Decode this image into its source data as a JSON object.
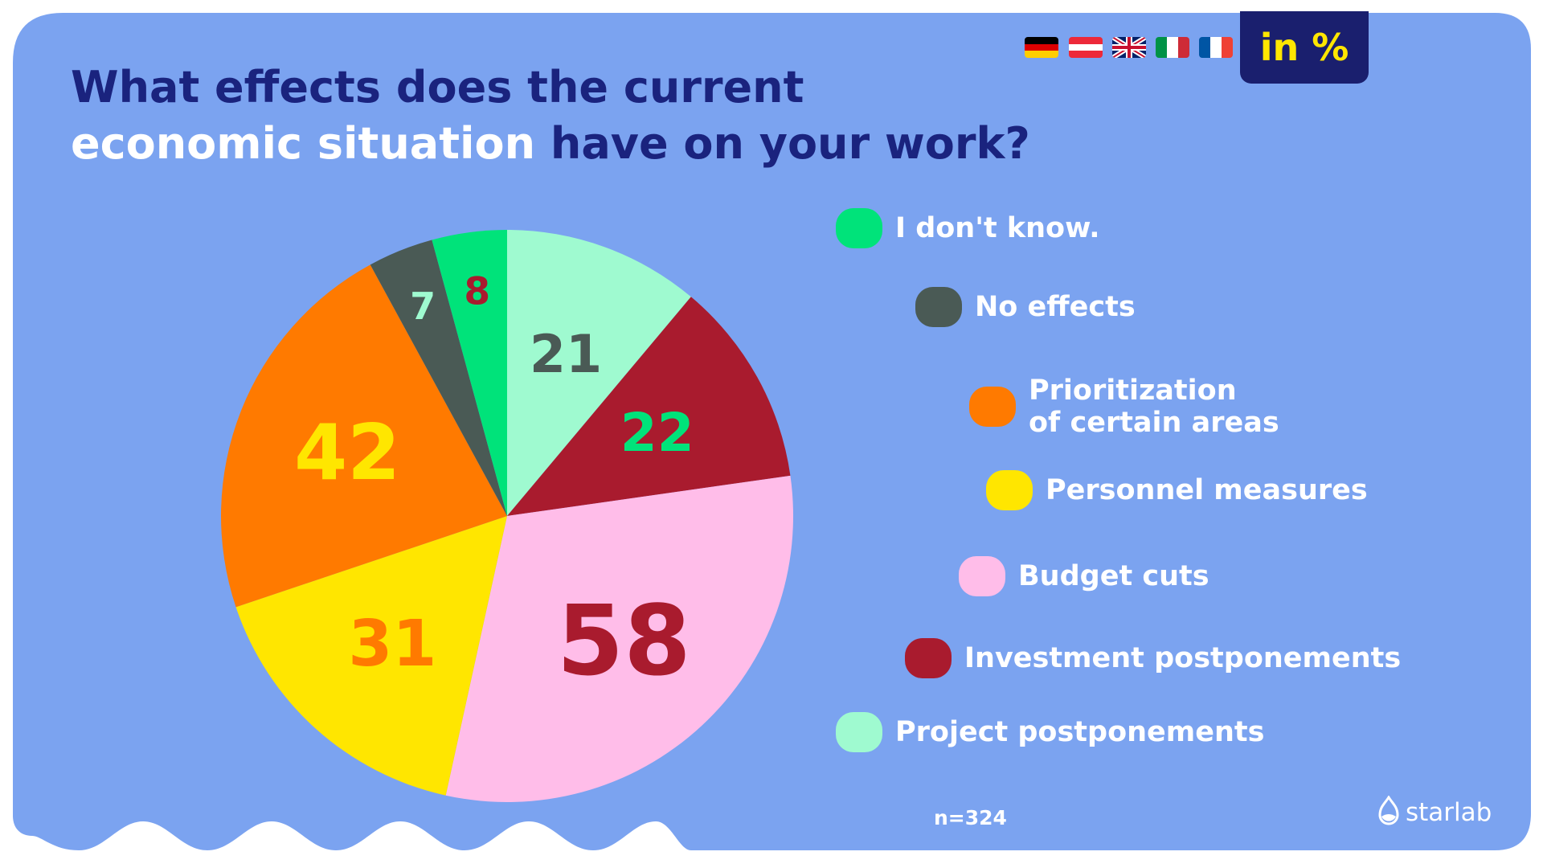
{
  "header": {
    "title_part1": "What effects does the current",
    "title_part2": "economic situation",
    "title_part3": "have on your work?",
    "unit_badge": "in %",
    "flags": [
      "german-flag-icon",
      "austrian-flag-icon",
      "uk-flag-icon",
      "italian-flag-icon",
      "french-flag-icon"
    ]
  },
  "chart_data": {
    "type": "pie",
    "title": "What effects does the current economic situation have on your work?",
    "unit": "in %",
    "slices": [
      {
        "label": "Project postponements",
        "value": 21,
        "color": "#9ffad0",
        "label_color": "#4a5a55"
      },
      {
        "label": "Investment postponements",
        "value": 22,
        "color": "#a91b2e",
        "label_color": "#00e37a"
      },
      {
        "label": "Budget cuts",
        "value": 58,
        "color": "#ffbde9",
        "label_color": "#a91b2e"
      },
      {
        "label": "Personnel measures",
        "value": 31,
        "color": "#ffe600",
        "label_color": "#ff7a00"
      },
      {
        "label": "Prioritization\nof certain areas",
        "value": 42,
        "color": "#ff7a00",
        "label_color": "#ffe600"
      },
      {
        "label": "No effects",
        "value": 7,
        "color": "#4a5a55",
        "label_color": "#9ffad0"
      },
      {
        "label": "I don't know.",
        "value": 8,
        "color": "#00e37a",
        "label_color": "#a91b2e"
      }
    ],
    "legend_order": [
      "I don't know.",
      "No effects",
      "Prioritization\nof certain areas",
      "Personnel measures",
      "Budget cuts",
      "Investment postponements",
      "Project postponements"
    ],
    "legend_placement": "right"
  },
  "footer": {
    "sample_size": "n=324",
    "brand": "starlab"
  },
  "colors": {
    "background": "#7ba3f0",
    "title_dark": "#1a237e",
    "badge": "#1a1f6e",
    "badge_text": "#ffe600"
  }
}
